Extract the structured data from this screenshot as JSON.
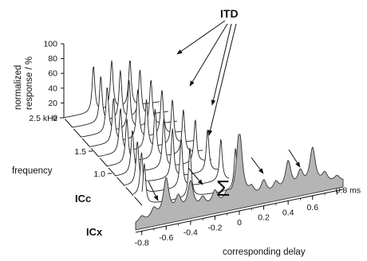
{
  "chart_data": {
    "type": "area",
    "annotation_top": "ITD",
    "annotation_sum": "Σ",
    "left_axis": {
      "label_line1": "normalized",
      "label_line2": "response / %",
      "ticks": [
        "100",
        "80",
        "60",
        "40",
        "20",
        "0"
      ],
      "ylim": [
        0,
        100
      ]
    },
    "frequency_axis": {
      "label": "frequency",
      "ticks": [
        "2.5 kHz",
        "1.5",
        "1.0"
      ]
    },
    "delay_axis": {
      "label": "corresponding delay",
      "ticks": [
        "-0.8",
        "-0.6",
        "-0.4",
        "-0.2",
        "0",
        "0.2",
        "0.4",
        "0.6",
        "0.8 ms"
      ],
      "xlim": [
        -0.85,
        0.85
      ]
    },
    "layer_labels": {
      "icc": "ICc",
      "icx": "ICx"
    },
    "icc_series": [
      {
        "freq_khz": 2.5,
        "peaks": [
          -0.4,
          0.0,
          0.4
        ]
      },
      {
        "freq_khz": 2.3,
        "peaks": [
          -0.43,
          0.0,
          0.43
        ]
      },
      {
        "freq_khz": 2.1,
        "peaks": [
          -0.48,
          0.0,
          0.48
        ]
      },
      {
        "freq_khz": 1.9,
        "peaks": [
          -0.53,
          0.0,
          0.53
        ]
      },
      {
        "freq_khz": 1.75,
        "peaks": [
          -0.57,
          0.0,
          0.57
        ]
      },
      {
        "freq_khz": 1.6,
        "peaks": [
          -0.62,
          0.0,
          0.62
        ]
      },
      {
        "freq_khz": 1.45,
        "peaks": [
          -0.69,
          0.0,
          0.69
        ]
      },
      {
        "freq_khz": 1.3,
        "peaks": [
          -0.77,
          0.0,
          0.77
        ]
      },
      {
        "freq_khz": 1.15,
        "peaks": [
          -0.87,
          0.0,
          0.87
        ]
      },
      {
        "freq_khz": 1.0,
        "peaks": [
          -1.0,
          0.0,
          1.0
        ]
      }
    ],
    "icx_sum": {
      "x": [
        -0.8,
        -0.7,
        -0.6,
        -0.5,
        -0.4,
        -0.3,
        -0.2,
        -0.1,
        0.0,
        0.1,
        0.2,
        0.3,
        0.4,
        0.5,
        0.6,
        0.7,
        0.8
      ],
      "y": [
        8,
        14,
        52,
        22,
        40,
        14,
        20,
        12,
        100,
        12,
        20,
        14,
        40,
        22,
        52,
        14,
        8
      ]
    }
  }
}
